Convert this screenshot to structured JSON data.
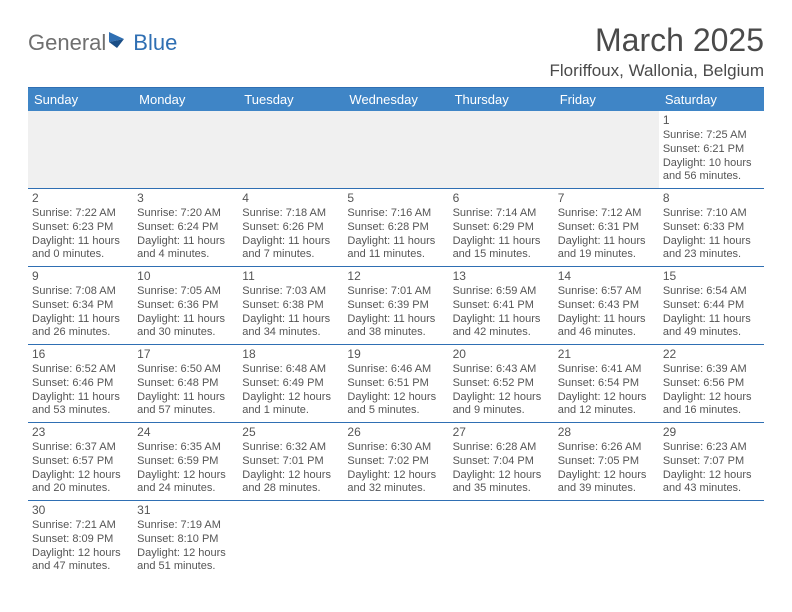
{
  "logo": {
    "part1": "General",
    "part2": "Blue"
  },
  "title": "March 2025",
  "location": "Floriffoux, Wallonia, Belgium",
  "colors": {
    "header_bg": "#3f85c6",
    "border": "#2f6fb3",
    "text": "#444444",
    "muted_bg": "#f0f0f0",
    "logo_gray": "#6f6f6f",
    "logo_blue": "#2f6fb3"
  },
  "day_labels": [
    "Sunday",
    "Monday",
    "Tuesday",
    "Wednesday",
    "Thursday",
    "Friday",
    "Saturday"
  ],
  "weeks": [
    [
      null,
      null,
      null,
      null,
      null,
      null,
      {
        "n": "1",
        "sr": "Sunrise: 7:25 AM",
        "ss": "Sunset: 6:21 PM",
        "dl": "Daylight: 10 hours and 56 minutes."
      }
    ],
    [
      {
        "n": "2",
        "sr": "Sunrise: 7:22 AM",
        "ss": "Sunset: 6:23 PM",
        "dl": "Daylight: 11 hours and 0 minutes."
      },
      {
        "n": "3",
        "sr": "Sunrise: 7:20 AM",
        "ss": "Sunset: 6:24 PM",
        "dl": "Daylight: 11 hours and 4 minutes."
      },
      {
        "n": "4",
        "sr": "Sunrise: 7:18 AM",
        "ss": "Sunset: 6:26 PM",
        "dl": "Daylight: 11 hours and 7 minutes."
      },
      {
        "n": "5",
        "sr": "Sunrise: 7:16 AM",
        "ss": "Sunset: 6:28 PM",
        "dl": "Daylight: 11 hours and 11 minutes."
      },
      {
        "n": "6",
        "sr": "Sunrise: 7:14 AM",
        "ss": "Sunset: 6:29 PM",
        "dl": "Daylight: 11 hours and 15 minutes."
      },
      {
        "n": "7",
        "sr": "Sunrise: 7:12 AM",
        "ss": "Sunset: 6:31 PM",
        "dl": "Daylight: 11 hours and 19 minutes."
      },
      {
        "n": "8",
        "sr": "Sunrise: 7:10 AM",
        "ss": "Sunset: 6:33 PM",
        "dl": "Daylight: 11 hours and 23 minutes."
      }
    ],
    [
      {
        "n": "9",
        "sr": "Sunrise: 7:08 AM",
        "ss": "Sunset: 6:34 PM",
        "dl": "Daylight: 11 hours and 26 minutes."
      },
      {
        "n": "10",
        "sr": "Sunrise: 7:05 AM",
        "ss": "Sunset: 6:36 PM",
        "dl": "Daylight: 11 hours and 30 minutes."
      },
      {
        "n": "11",
        "sr": "Sunrise: 7:03 AM",
        "ss": "Sunset: 6:38 PM",
        "dl": "Daylight: 11 hours and 34 minutes."
      },
      {
        "n": "12",
        "sr": "Sunrise: 7:01 AM",
        "ss": "Sunset: 6:39 PM",
        "dl": "Daylight: 11 hours and 38 minutes."
      },
      {
        "n": "13",
        "sr": "Sunrise: 6:59 AM",
        "ss": "Sunset: 6:41 PM",
        "dl": "Daylight: 11 hours and 42 minutes."
      },
      {
        "n": "14",
        "sr": "Sunrise: 6:57 AM",
        "ss": "Sunset: 6:43 PM",
        "dl": "Daylight: 11 hours and 46 minutes."
      },
      {
        "n": "15",
        "sr": "Sunrise: 6:54 AM",
        "ss": "Sunset: 6:44 PM",
        "dl": "Daylight: 11 hours and 49 minutes."
      }
    ],
    [
      {
        "n": "16",
        "sr": "Sunrise: 6:52 AM",
        "ss": "Sunset: 6:46 PM",
        "dl": "Daylight: 11 hours and 53 minutes."
      },
      {
        "n": "17",
        "sr": "Sunrise: 6:50 AM",
        "ss": "Sunset: 6:48 PM",
        "dl": "Daylight: 11 hours and 57 minutes."
      },
      {
        "n": "18",
        "sr": "Sunrise: 6:48 AM",
        "ss": "Sunset: 6:49 PM",
        "dl": "Daylight: 12 hours and 1 minute."
      },
      {
        "n": "19",
        "sr": "Sunrise: 6:46 AM",
        "ss": "Sunset: 6:51 PM",
        "dl": "Daylight: 12 hours and 5 minutes."
      },
      {
        "n": "20",
        "sr": "Sunrise: 6:43 AM",
        "ss": "Sunset: 6:52 PM",
        "dl": "Daylight: 12 hours and 9 minutes."
      },
      {
        "n": "21",
        "sr": "Sunrise: 6:41 AM",
        "ss": "Sunset: 6:54 PM",
        "dl": "Daylight: 12 hours and 12 minutes."
      },
      {
        "n": "22",
        "sr": "Sunrise: 6:39 AM",
        "ss": "Sunset: 6:56 PM",
        "dl": "Daylight: 12 hours and 16 minutes."
      }
    ],
    [
      {
        "n": "23",
        "sr": "Sunrise: 6:37 AM",
        "ss": "Sunset: 6:57 PM",
        "dl": "Daylight: 12 hours and 20 minutes."
      },
      {
        "n": "24",
        "sr": "Sunrise: 6:35 AM",
        "ss": "Sunset: 6:59 PM",
        "dl": "Daylight: 12 hours and 24 minutes."
      },
      {
        "n": "25",
        "sr": "Sunrise: 6:32 AM",
        "ss": "Sunset: 7:01 PM",
        "dl": "Daylight: 12 hours and 28 minutes."
      },
      {
        "n": "26",
        "sr": "Sunrise: 6:30 AM",
        "ss": "Sunset: 7:02 PM",
        "dl": "Daylight: 12 hours and 32 minutes."
      },
      {
        "n": "27",
        "sr": "Sunrise: 6:28 AM",
        "ss": "Sunset: 7:04 PM",
        "dl": "Daylight: 12 hours and 35 minutes."
      },
      {
        "n": "28",
        "sr": "Sunrise: 6:26 AM",
        "ss": "Sunset: 7:05 PM",
        "dl": "Daylight: 12 hours and 39 minutes."
      },
      {
        "n": "29",
        "sr": "Sunrise: 6:23 AM",
        "ss": "Sunset: 7:07 PM",
        "dl": "Daylight: 12 hours and 43 minutes."
      }
    ],
    [
      {
        "n": "30",
        "sr": "Sunrise: 7:21 AM",
        "ss": "Sunset: 8:09 PM",
        "dl": "Daylight: 12 hours and 47 minutes."
      },
      {
        "n": "31",
        "sr": "Sunrise: 7:19 AM",
        "ss": "Sunset: 8:10 PM",
        "dl": "Daylight: 12 hours and 51 minutes."
      },
      null,
      null,
      null,
      null,
      null
    ]
  ]
}
